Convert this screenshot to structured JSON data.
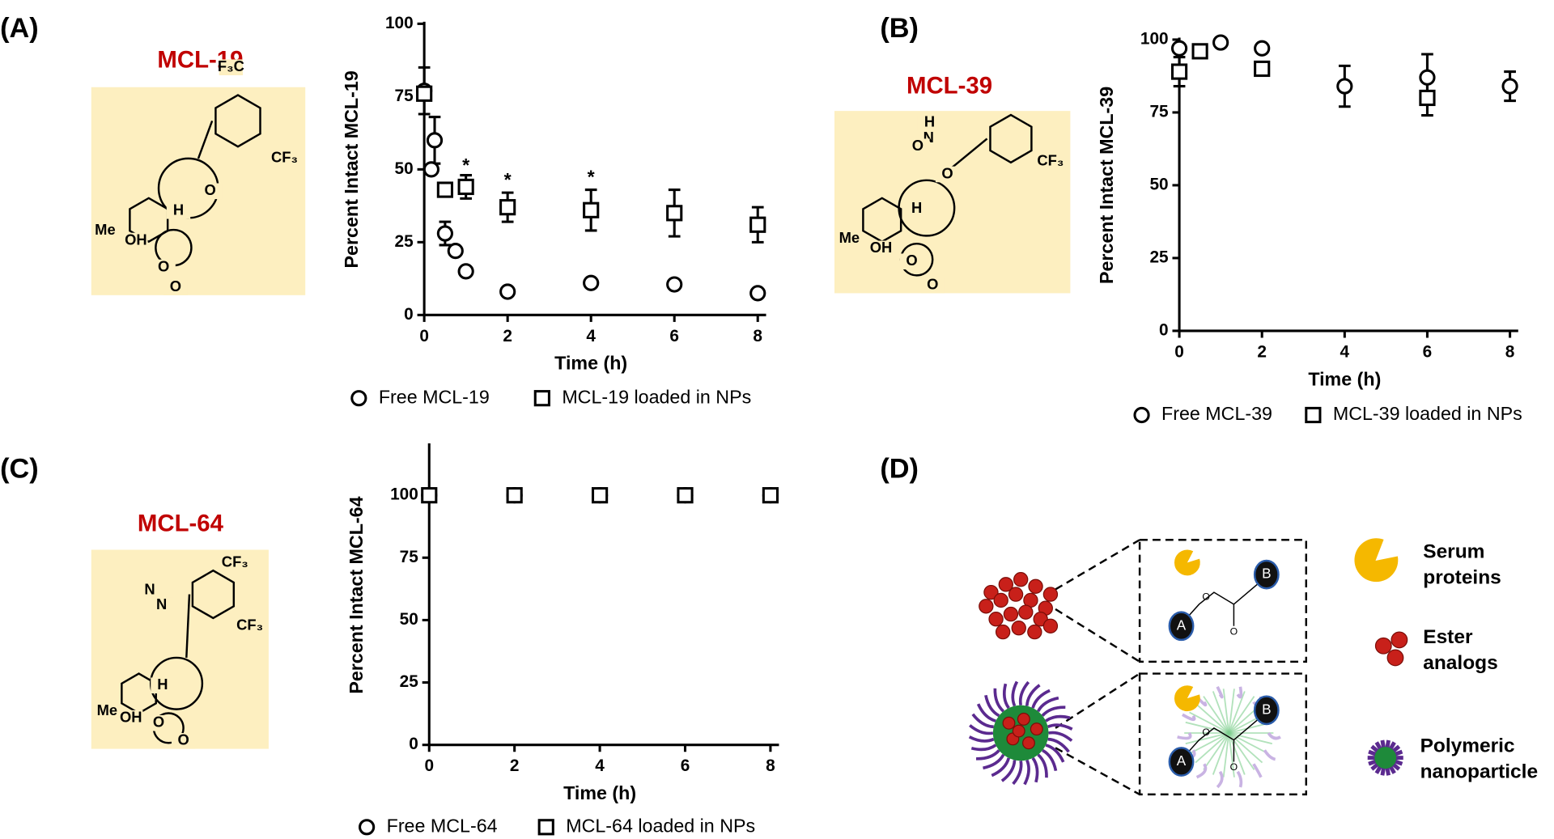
{
  "chart_data": [
    {
      "type": "scatter",
      "panel_label": "(A)",
      "compound": {
        "name": "MCL-19",
        "atoms": [
          "F₃C",
          "CF₃",
          "O",
          "H",
          "Me",
          "OH",
          "O",
          "O"
        ]
      },
      "x_label": "Time (h)",
      "y_label": "Percent Intact MCL-19",
      "xlim": [
        0,
        8.2
      ],
      "ylim": [
        0,
        100
      ],
      "xticks": [
        0,
        2,
        4,
        6,
        8
      ],
      "yticks": [
        0,
        25,
        50,
        75,
        100
      ],
      "series": [
        {
          "name": "Free MCL-19",
          "marker": "circle",
          "color": "#000000",
          "x": [
            0,
            0.17,
            0.25,
            0.5,
            0.75,
            1,
            2,
            4,
            6,
            8
          ],
          "values": [
            77,
            50,
            60,
            28,
            22,
            15,
            8,
            11,
            10.5,
            7.5
          ],
          "errors": [
            8,
            null,
            8,
            4,
            null,
            null,
            null,
            null,
            null,
            null
          ]
        },
        {
          "name": "MCL-19 loaded in NPs",
          "marker": "square",
          "color": "#000000",
          "x": [
            0,
            0.5,
            1,
            2,
            4,
            6,
            8
          ],
          "values": [
            76,
            43,
            44,
            37,
            36,
            35,
            31
          ],
          "errors": [
            null,
            null,
            4,
            5,
            7,
            8,
            6
          ]
        }
      ],
      "annotations": [
        {
          "text": "*",
          "x": 1,
          "y": 51
        },
        {
          "text": "*",
          "x": 2,
          "y": 46
        },
        {
          "text": "*",
          "x": 4,
          "y": 47
        }
      ]
    },
    {
      "type": "scatter",
      "panel_label": "(B)",
      "compound": {
        "name": "MCL-39",
        "atoms": [
          "H",
          "N",
          "O",
          "O",
          "CF₃",
          "H",
          "Me",
          "OH",
          "O",
          "O"
        ]
      },
      "x_label": "Time (h)",
      "y_label": "Percent Intact MCL-39",
      "xlim": [
        0,
        8.2
      ],
      "ylim": [
        0,
        100
      ],
      "xticks": [
        0,
        2,
        4,
        6,
        8
      ],
      "yticks": [
        0,
        25,
        50,
        75,
        100
      ],
      "series": [
        {
          "name": "Free MCL-39",
          "marker": "circle",
          "color": "#000000",
          "x": [
            0,
            1,
            2,
            4,
            6,
            8
          ],
          "values": [
            97,
            99,
            97,
            84,
            87,
            84
          ],
          "errors": [
            null,
            null,
            null,
            7,
            8,
            5
          ]
        },
        {
          "name": "MCL-39 loaded in NPs",
          "marker": "square",
          "color": "#000000",
          "x": [
            0,
            0.5,
            2,
            6
          ],
          "values": [
            89,
            96,
            90,
            80
          ],
          "errors": [
            5,
            null,
            null,
            6
          ]
        }
      ],
      "annotations": []
    },
    {
      "type": "scatter",
      "panel_label": "(C)",
      "compound": {
        "name": "MCL-64",
        "atoms": [
          "CF₃",
          "N",
          "N",
          "CF₃",
          "H",
          "Me",
          "OH",
          "O",
          "O"
        ]
      },
      "x_label": "Time (h)",
      "y_label": "Percent Intact MCL-64",
      "xlim": [
        0,
        8.2
      ],
      "ylim": [
        0,
        120
      ],
      "xticks": [
        0,
        2,
        4,
        6,
        8
      ],
      "yticks": [
        0,
        25,
        50,
        75,
        100
      ],
      "series": [
        {
          "name": "Free MCL-64",
          "marker": "circle",
          "color": "#000000",
          "x": [
            0,
            2,
            4,
            6,
            8
          ],
          "values": [
            100,
            100,
            100,
            100,
            100
          ],
          "errors": [
            null,
            null,
            null,
            null,
            null
          ]
        },
        {
          "name": "MCL-64 loaded in NPs",
          "marker": "square",
          "color": "#000000",
          "x": [
            0,
            2,
            4,
            6,
            8
          ],
          "values": [
            100,
            100,
            100,
            100,
            100
          ],
          "errors": [
            null,
            null,
            null,
            null,
            null
          ]
        }
      ],
      "annotations": []
    }
  ],
  "diagram": {
    "panel_label": "(D)",
    "boxes": [
      {
        "labels": [
          "A",
          "B",
          "O",
          "O"
        ]
      },
      {
        "labels": [
          "A",
          "B",
          "O",
          "O"
        ]
      }
    ],
    "legend": [
      {
        "lines": [
          "Serum",
          "proteins"
        ]
      },
      {
        "lines": [
          "Ester",
          "analogs"
        ]
      },
      {
        "lines": [
          "Polymeric",
          "nanoparticle"
        ]
      }
    ]
  }
}
